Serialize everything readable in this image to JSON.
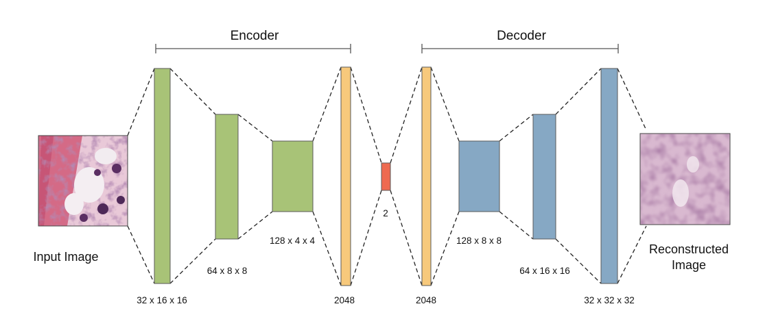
{
  "encoder_label": "Encoder",
  "decoder_label": "Decoder",
  "input_label": "Input Image",
  "output_label_line1": "Reconstructed",
  "output_label_line2": "Image",
  "colors": {
    "encoder_block": "#a8c377",
    "dense_block": "#f7c97c",
    "latent_block": "#ee6a50",
    "decoder_block": "#86a8c4"
  },
  "layers": [
    {
      "id": "enc1",
      "shape": "32 x 16 x 16"
    },
    {
      "id": "enc2",
      "shape": "64 x 8 x 8"
    },
    {
      "id": "enc3",
      "shape": "128 x 4 x 4"
    },
    {
      "id": "enc-dense",
      "shape": "2048"
    },
    {
      "id": "latent",
      "shape": "2"
    },
    {
      "id": "dec-dense",
      "shape": "2048"
    },
    {
      "id": "dec1",
      "shape": "128 x 8 x 8"
    },
    {
      "id": "dec2",
      "shape": "64 x 16 x 16"
    },
    {
      "id": "dec3",
      "shape": "32 x 32 x 32"
    }
  ]
}
